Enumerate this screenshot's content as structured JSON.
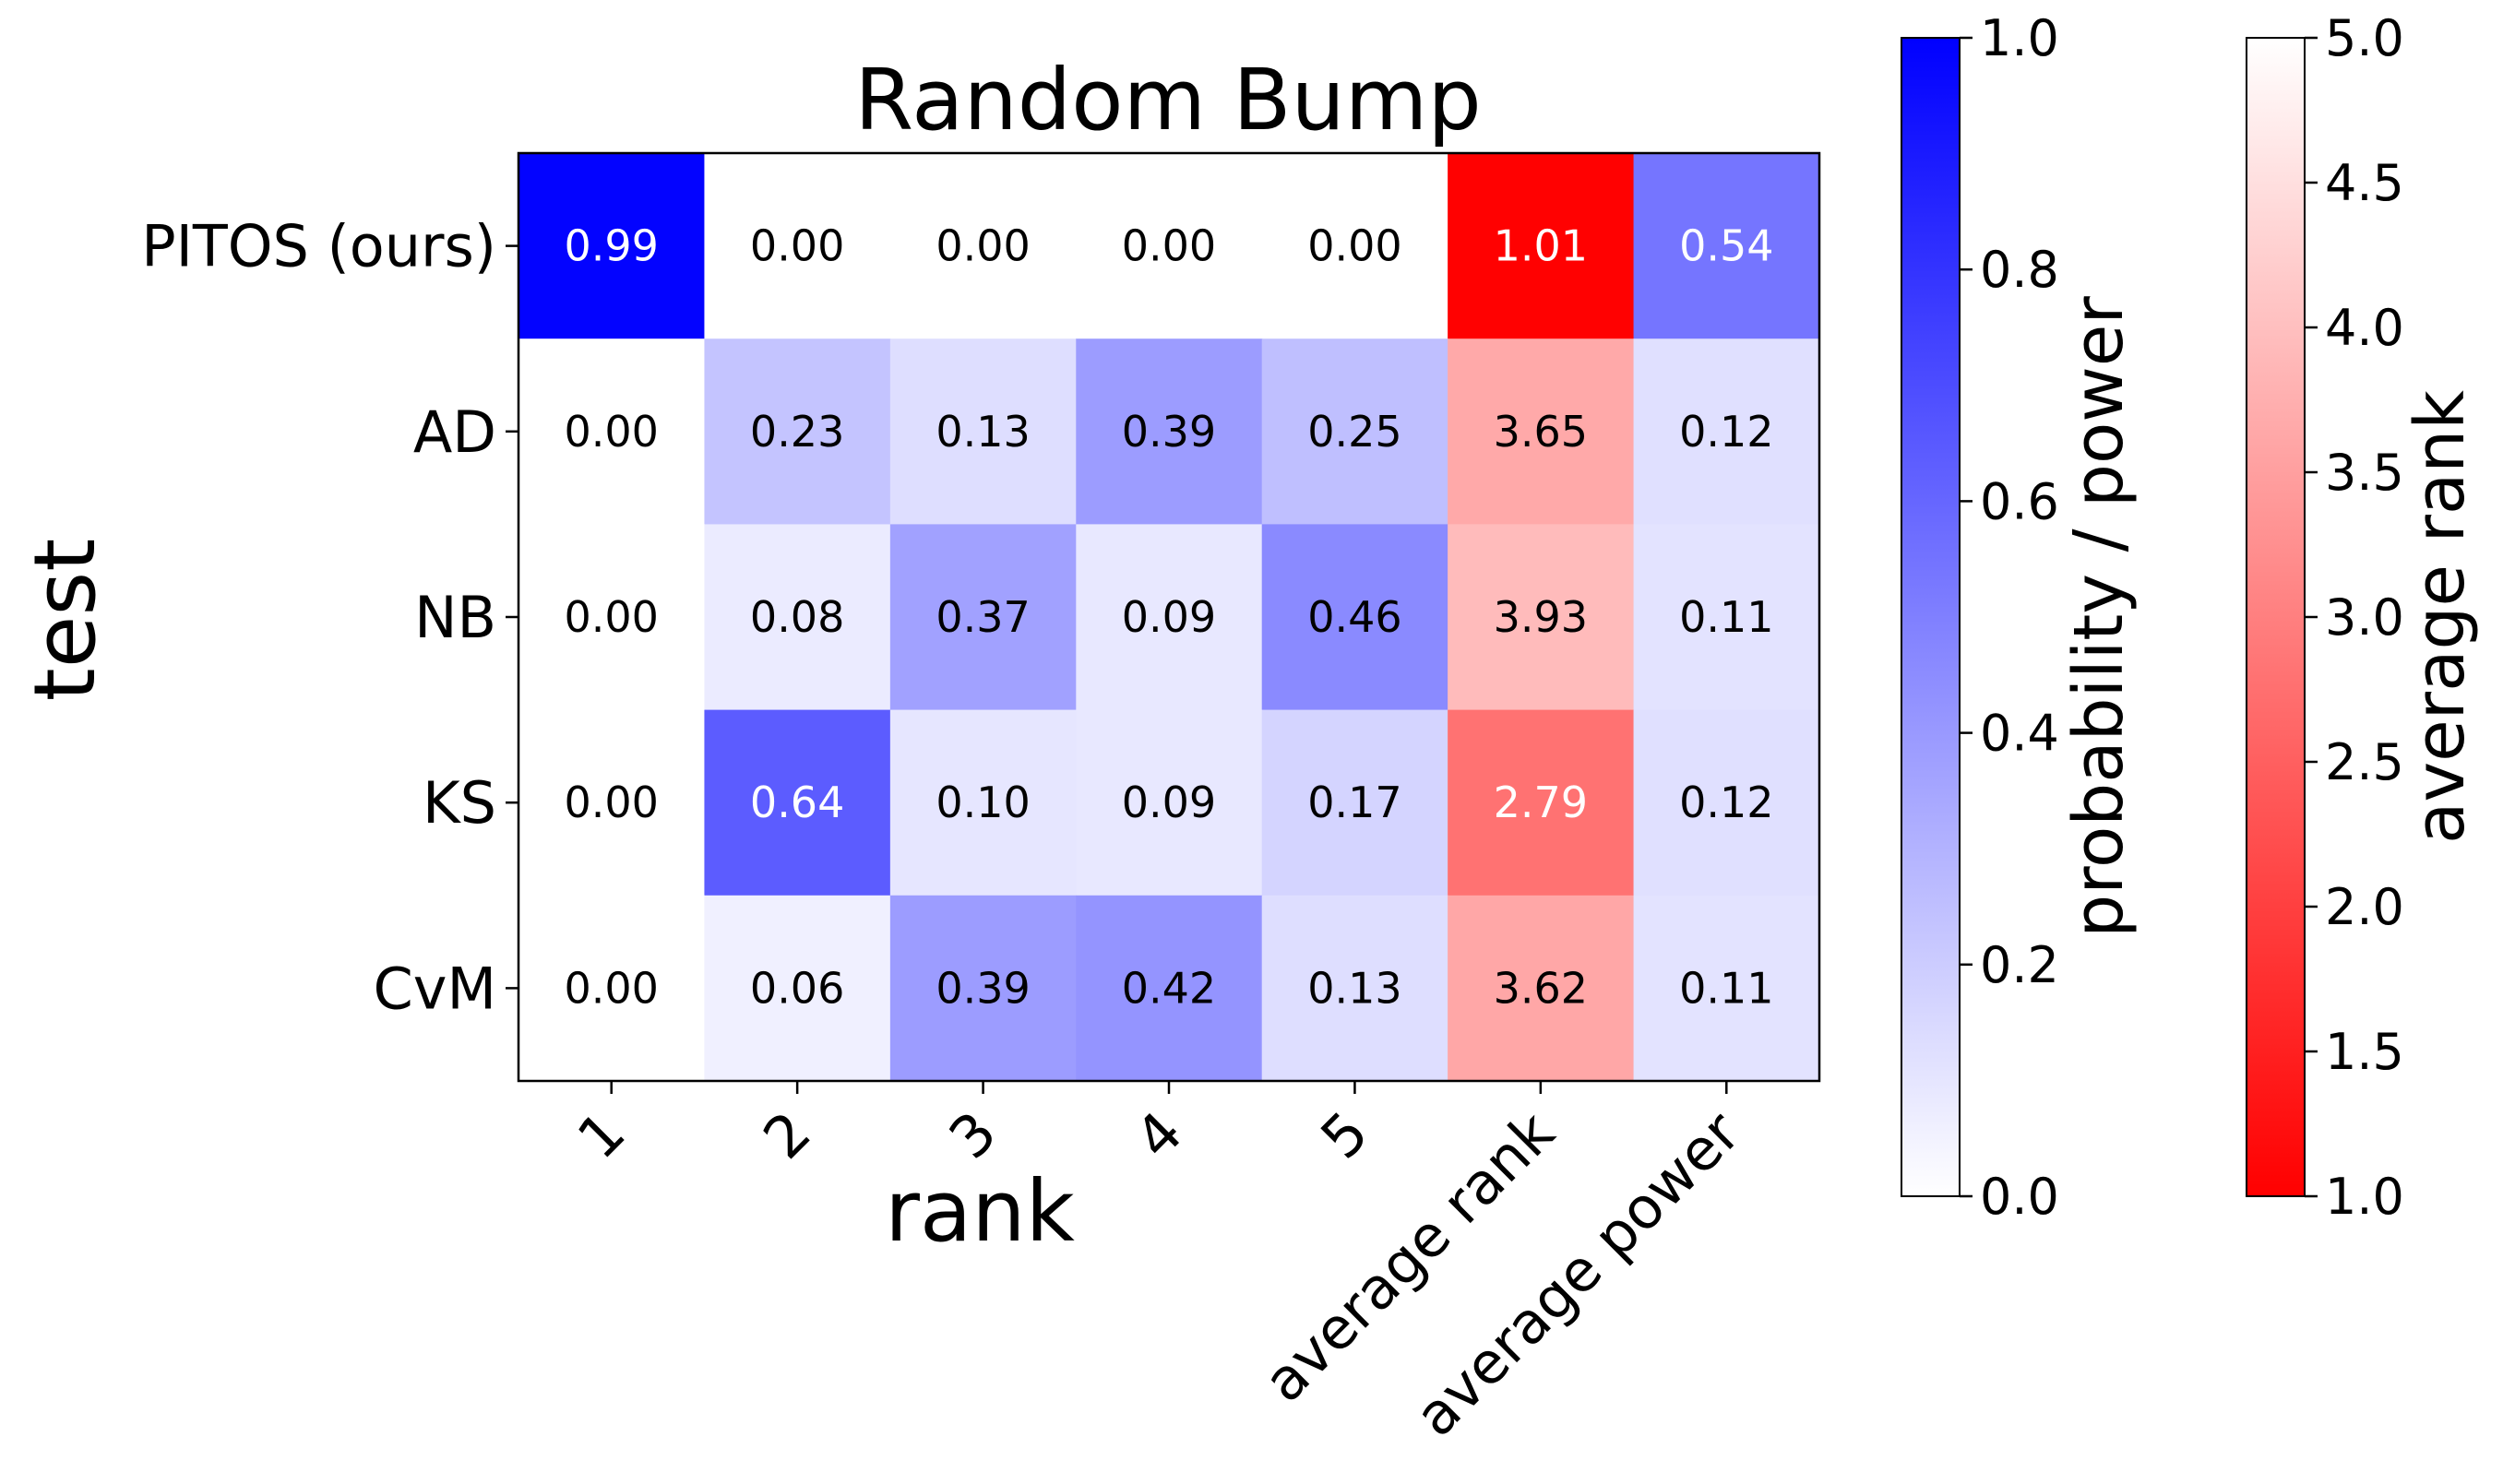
{
  "chart_data": {
    "type": "heatmap",
    "title": "Random Bump",
    "xlabel": "rank",
    "ylabel": "test",
    "rows": [
      "PITOS (ours)",
      "AD",
      "NB",
      "KS",
      "CvM"
    ],
    "columns": [
      "1",
      "2",
      "3",
      "4",
      "5",
      "average rank",
      "average power"
    ],
    "cells": [
      [
        "0.99",
        "0.00",
        "0.00",
        "0.00",
        "0.00",
        "1.01",
        "0.54"
      ],
      [
        "0.00",
        "0.23",
        "0.13",
        "0.39",
        "0.25",
        "3.65",
        "0.12"
      ],
      [
        "0.00",
        "0.08",
        "0.37",
        "0.09",
        "0.46",
        "3.93",
        "0.11"
      ],
      [
        "0.00",
        "0.64",
        "0.10",
        "0.09",
        "0.17",
        "2.79",
        "0.12"
      ],
      [
        "0.00",
        "0.06",
        "0.39",
        "0.42",
        "0.13",
        "3.62",
        "0.11"
      ]
    ],
    "rank_column": "average rank",
    "colorbars": [
      {
        "label": "probability / power",
        "range": [
          0.0,
          1.0
        ],
        "ticks": [
          "0.0",
          "0.2",
          "0.4",
          "0.6",
          "0.8",
          "1.0"
        ],
        "low_color": "#ffffff",
        "high_color": "#0000ff"
      },
      {
        "label": "average rank",
        "range": [
          1.0,
          5.0
        ],
        "ticks": [
          "1.0",
          "1.5",
          "2.0",
          "2.5",
          "3.0",
          "3.5",
          "4.0",
          "4.5",
          "5.0"
        ],
        "low_color": "#ff0000",
        "high_color": "#ffffff"
      }
    ]
  }
}
